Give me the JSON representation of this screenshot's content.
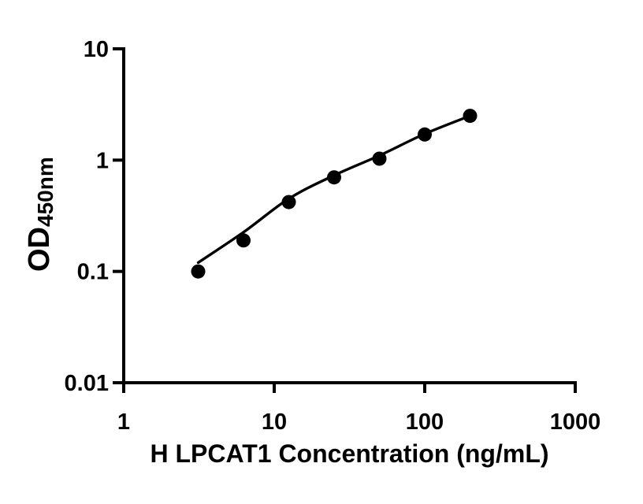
{
  "figure": {
    "background": "#ffffff"
  },
  "chart_data": {
    "type": "scatter",
    "title": "",
    "xlabel": "H LPCAT1 Concentration (ng/mL)",
    "ylabel": "OD450nm",
    "ylabel_main": "OD",
    "ylabel_sub": "450nm",
    "xscale": "log",
    "yscale": "log",
    "xlim": [
      1,
      1000
    ],
    "ylim": [
      0.01,
      10
    ],
    "grid": false,
    "legend": false,
    "axis_color": "#000000",
    "marker_color": "#000000",
    "line_color": "#000000",
    "x_ticks": [
      {
        "value": 1,
        "label": "1"
      },
      {
        "value": 10,
        "label": "10"
      },
      {
        "value": 100,
        "label": "100"
      },
      {
        "value": 1000,
        "label": "1000"
      }
    ],
    "y_ticks": [
      {
        "value": 10,
        "label": "10"
      },
      {
        "value": 1,
        "label": "1"
      },
      {
        "value": 0.1,
        "label": "0.1"
      },
      {
        "value": 0.01,
        "label": "0.01"
      }
    ],
    "series": [
      {
        "name": "standard-points",
        "kind": "scatter",
        "marker": "circle",
        "color": "#000000",
        "x": [
          3.125,
          6.25,
          12.5,
          25,
          50,
          100,
          200
        ],
        "y": [
          0.1,
          0.19,
          0.42,
          0.7,
          1.03,
          1.7,
          2.5
        ]
      },
      {
        "name": "fit-curve",
        "kind": "line",
        "color": "#000000",
        "x": [
          3.125,
          6.25,
          12.5,
          25,
          50,
          100,
          200
        ],
        "y": [
          0.12,
          0.225,
          0.45,
          0.73,
          1.1,
          1.72,
          2.5
        ]
      }
    ]
  }
}
